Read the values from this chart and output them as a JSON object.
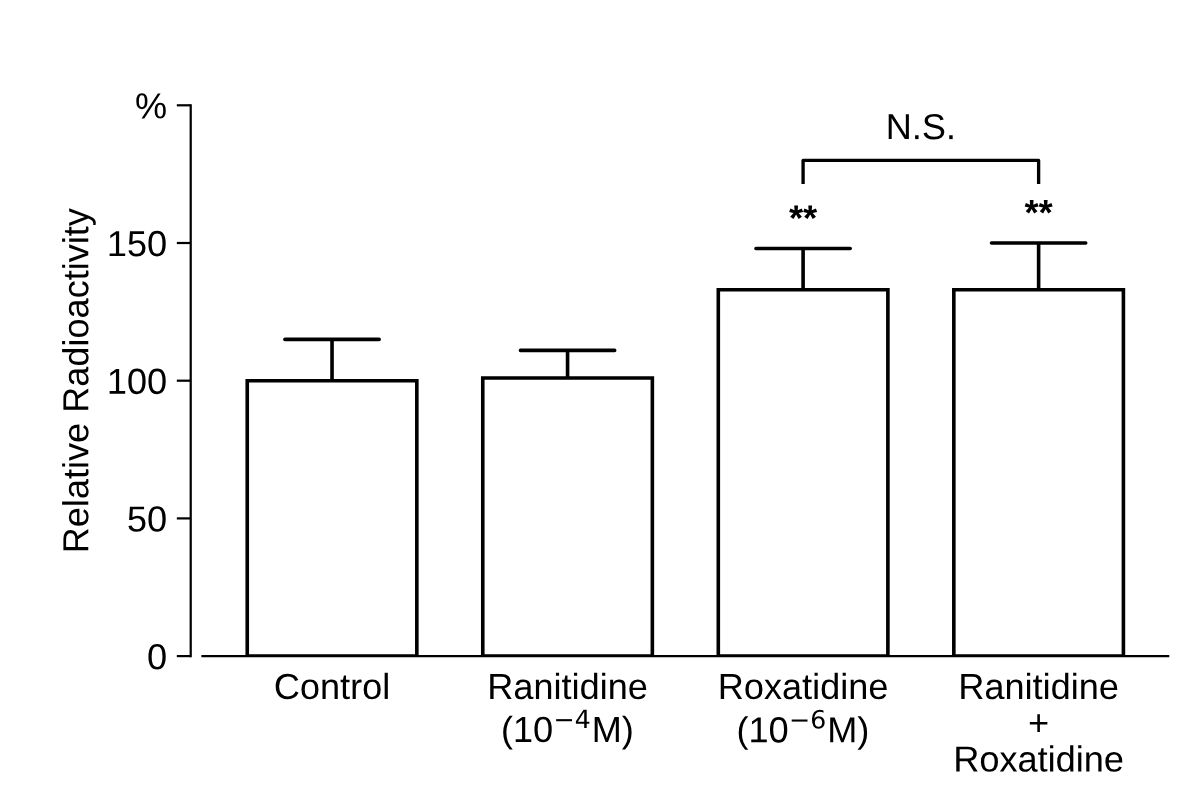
{
  "chart_data": {
    "type": "bar",
    "ylabel": "Relative Radioactivity",
    "categories": [
      "Control",
      "Ranitidine\n(10$^{−4}$M)",
      "Roxatidine\n(10$^{−6}$M)",
      "Ranitidine\n+\nRoxatidine"
    ],
    "values": [
      100,
      101,
      133,
      133
    ],
    "errors": [
      15,
      10,
      15,
      17
    ],
    "color": "#ffffff",
    "ylim": [
      0,
      200
    ],
    "yticks": [
      0,
      50,
      100,
      150,
      {
        "value": 200,
        "label": "%"
      }
    ],
    "grid": false,
    "legend": false,
    "annotations": [
      "**",
      "**",
      "N.S."
    ]
  }
}
